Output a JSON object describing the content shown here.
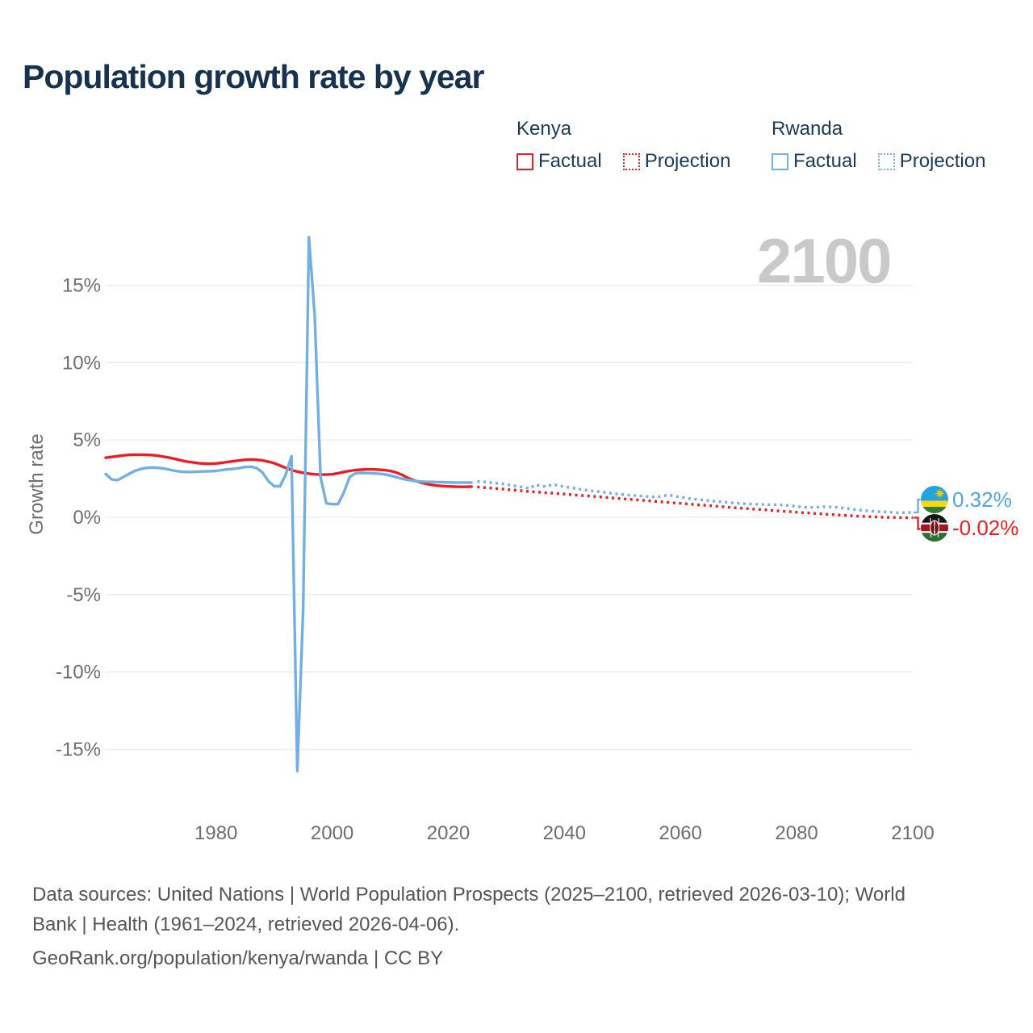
{
  "title": "Population growth rate by year",
  "watermark": "2100",
  "legend": {
    "groups": [
      {
        "country": "Kenya",
        "color": "#e81f27",
        "items": [
          {
            "label": "Factual",
            "style": "solid"
          },
          {
            "label": "Projection",
            "style": "dotted"
          }
        ]
      },
      {
        "country": "Rwanda",
        "color": "#74afe3",
        "items": [
          {
            "label": "Factual",
            "style": "solid"
          },
          {
            "label": "Projection",
            "style": "dotted"
          }
        ]
      }
    ]
  },
  "end_labels": [
    {
      "country": "Rwanda",
      "value": "0.32%",
      "color": "#56a3e2"
    },
    {
      "country": "Kenya",
      "value": "-0.02%",
      "color": "#e81f27"
    }
  ],
  "footer": {
    "line1": "Data sources: United Nations | World Population Prospects (2025–2100, retrieved 2026-03-10); World",
    "line2": "Bank | Health (1961–2024, retrieved 2026-04-06).",
    "line3": "GeoRank.org/population/kenya/rwanda | CC BY"
  },
  "colors": {
    "kenya_red": "#e81f27",
    "rwanda_blue": "#74afe3",
    "title_navy": "#16324e",
    "tick_gray": "#6e6e6e",
    "watermark_gray": "#c9c9c9",
    "grid_gray": "#e9e9e9"
  },
  "chart_data": {
    "type": "line",
    "title": "Population growth rate by year",
    "xlabel": "",
    "ylabel": "Growth rate",
    "x_domain": [
      1961,
      2100
    ],
    "y_domain": [
      -17,
      19
    ],
    "grid": true,
    "legend_position": "top-right",
    "x_ticks": [
      1980,
      2000,
      2020,
      2040,
      2060,
      2080,
      2100
    ],
    "x_tick_labels": [
      "1980",
      "2000",
      "2020",
      "2040",
      "2060",
      "2080",
      "2100"
    ],
    "y_ticks": [
      15,
      10,
      5,
      0,
      -5,
      -10,
      -15
    ],
    "y_tick_labels": [
      "15%",
      "10%",
      "5%",
      "0%",
      "-5%",
      "-10%",
      "-15%"
    ],
    "series": [
      {
        "name": "Kenya Factual",
        "color": "#e81f27",
        "style": "solid",
        "start_year": 1961,
        "values": [
          3.85,
          3.9,
          3.95,
          4.0,
          4.03,
          4.05,
          4.05,
          4.04,
          4.02,
          3.98,
          3.92,
          3.85,
          3.77,
          3.68,
          3.6,
          3.55,
          3.5,
          3.47,
          3.46,
          3.48,
          3.52,
          3.58,
          3.63,
          3.68,
          3.72,
          3.74,
          3.72,
          3.68,
          3.6,
          3.5,
          3.35,
          3.2,
          3.05,
          2.95,
          2.88,
          2.82,
          2.78,
          2.76,
          2.76,
          2.78,
          2.85,
          2.93,
          3.0,
          3.05,
          3.08,
          3.1,
          3.1,
          3.08,
          3.05,
          3.0,
          2.9,
          2.75,
          2.55,
          2.4,
          2.28,
          2.18,
          2.1,
          2.05,
          2.02,
          2.0,
          1.98,
          1.97,
          1.97,
          1.98
        ]
      },
      {
        "name": "Kenya Projection",
        "color": "#e81f27",
        "style": "dotted",
        "start_year": 2025,
        "values": [
          1.96,
          1.93,
          1.9,
          1.87,
          1.84,
          1.8,
          1.77,
          1.74,
          1.7,
          1.67,
          1.64,
          1.61,
          1.58,
          1.56,
          1.53,
          1.5,
          1.47,
          1.44,
          1.41,
          1.38,
          1.35,
          1.32,
          1.29,
          1.26,
          1.23,
          1.2,
          1.17,
          1.14,
          1.11,
          1.08,
          1.05,
          1.02,
          0.99,
          0.96,
          0.93,
          0.9,
          0.87,
          0.84,
          0.81,
          0.78,
          0.75,
          0.72,
          0.69,
          0.66,
          0.63,
          0.6,
          0.58,
          0.55,
          0.52,
          0.5,
          0.47,
          0.44,
          0.41,
          0.38,
          0.36,
          0.33,
          0.3,
          0.28,
          0.25,
          0.23,
          0.2,
          0.18,
          0.15,
          0.13,
          0.11,
          0.09,
          0.07,
          0.05,
          0.03,
          0.02,
          0.0,
          -0.01,
          -0.01,
          -0.02,
          -0.02,
          -0.02
        ]
      },
      {
        "name": "Rwanda Factual",
        "color": "#74afe3",
        "style": "solid",
        "start_year": 1961,
        "values": [
          2.8,
          2.45,
          2.4,
          2.6,
          2.8,
          3.0,
          3.12,
          3.2,
          3.22,
          3.2,
          3.15,
          3.08,
          3.0,
          2.95,
          2.93,
          2.93,
          2.95,
          2.97,
          2.98,
          3.0,
          3.05,
          3.1,
          3.13,
          3.18,
          3.25,
          3.27,
          3.18,
          2.9,
          2.35,
          2.02,
          2.0,
          2.75,
          3.95,
          -16.4,
          -6.0,
          18.1,
          13.0,
          2.6,
          0.9,
          0.85,
          0.85,
          1.6,
          2.6,
          2.85,
          2.87,
          2.86,
          2.84,
          2.82,
          2.78,
          2.7,
          2.6,
          2.5,
          2.42,
          2.36,
          2.32,
          2.3,
          2.29,
          2.28,
          2.27,
          2.26,
          2.25,
          2.25,
          2.25,
          2.25
        ]
      },
      {
        "name": "Rwanda Projection",
        "color": "#74afe3",
        "style": "dotted",
        "start_year": 2025,
        "values": [
          2.32,
          2.3,
          2.26,
          2.21,
          2.18,
          2.12,
          2.06,
          2.0,
          1.93,
          1.86,
          2.1,
          2.02,
          1.98,
          2.14,
          2.04,
          1.97,
          1.92,
          1.86,
          1.8,
          1.75,
          1.7,
          1.66,
          1.61,
          1.56,
          1.51,
          1.47,
          1.44,
          1.41,
          1.38,
          1.35,
          1.32,
          1.31,
          1.38,
          1.44,
          1.37,
          1.3,
          1.24,
          1.19,
          1.15,
          1.11,
          1.07,
          1.04,
          1.0,
          0.97,
          0.93,
          0.9,
          0.88,
          0.86,
          0.84,
          0.83,
          0.82,
          0.82,
          0.81,
          0.79,
          0.75,
          0.7,
          0.66,
          0.63,
          0.64,
          0.67,
          0.69,
          0.67,
          0.64,
          0.6,
          0.55,
          0.5,
          0.46,
          0.43,
          0.4,
          0.37,
          0.35,
          0.33,
          0.31,
          0.29,
          0.3,
          0.32
        ]
      }
    ]
  }
}
